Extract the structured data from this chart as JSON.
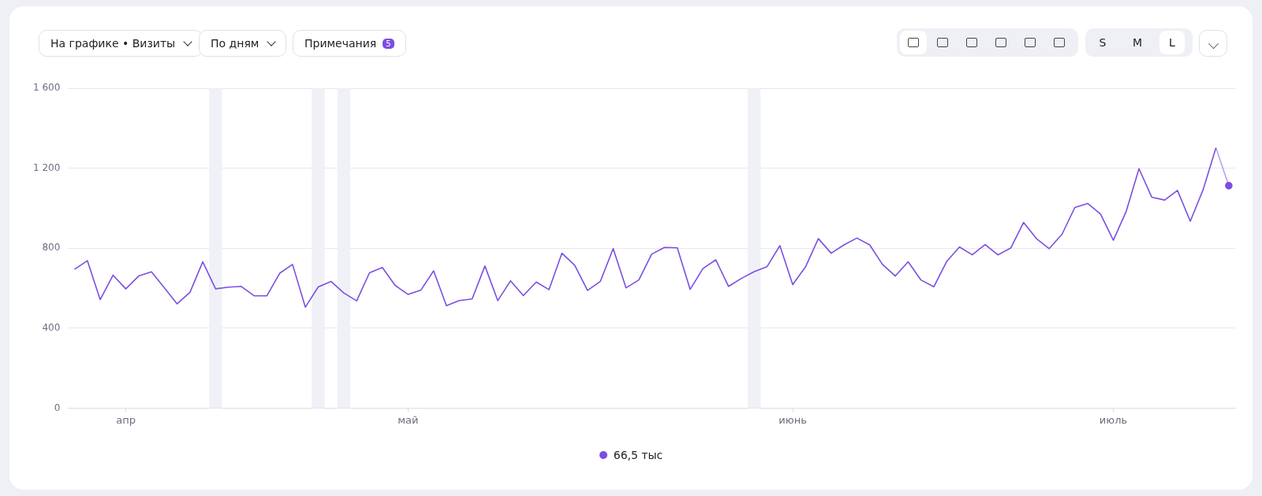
{
  "chart_data": {
    "type": "line",
    "annotations": [
      "На графике • Визиты",
      "По дням",
      "Примечания",
      "5",
      "S",
      "M",
      "L",
      "66,5 тыс"
    ],
    "categories": [
      null,
      null,
      null,
      null,
      "апр",
      null,
      null,
      null,
      null,
      null,
      null,
      null,
      null,
      null,
      null,
      null,
      null,
      null,
      null,
      null,
      null,
      null,
      null,
      null,
      null,
      null,
      "май",
      null,
      null,
      null,
      null,
      null,
      null,
      null,
      null,
      null,
      null,
      null,
      null,
      null,
      null,
      null,
      null,
      null,
      null,
      null,
      null,
      null,
      null,
      null,
      null,
      null,
      null,
      null,
      null,
      null,
      "июнь",
      null,
      null,
      null,
      null,
      null,
      null,
      null,
      null,
      null,
      null,
      null,
      null,
      null,
      null,
      null,
      null,
      null,
      null,
      null,
      null,
      null,
      null,
      null,
      null,
      "июль",
      null,
      null,
      null,
      null,
      null,
      null,
      null,
      null,
      null
    ],
    "series": [
      {
        "color": "#7b4fe0",
        "values": [
          694,
          738,
          543,
          665,
          597,
          661,
          682,
          602,
          522,
          579,
          732,
          597,
          605,
          609,
          562,
          562,
          675,
          719,
          505,
          606,
          634,
          576,
          537,
          677,
          704,
          614,
          569,
          590,
          687,
          513,
          538,
          546,
          711,
          538,
          637,
          563,
          631,
          593,
          775,
          715,
          589,
          634,
          798,
          602,
          641,
          770,
          804,
          802,
          594,
          698,
          742,
          609,
          649,
          683,
          708,
          813,
          618,
          707,
          848,
          775,
          817,
          851,
          817,
          719,
          661,
          732,
          641,
          607,
          733,
          806,
          767,
          818,
          767,
          801,
          929,
          848,
          798,
          870,
          1004,
          1024,
          971,
          840,
          984,
          1198,
          1055,
          1041,
          1089,
          935,
          1093,
          1302,
          1113
        ]
      }
    ],
    "ylim": [
      0,
      1600
    ],
    "yticks": [
      0,
      400,
      800,
      {
        "value": 1200,
        "label": "1 200"
      },
      {
        "value": 1600,
        "label": "1 600"
      }
    ],
    "grid": "y"
  }
}
